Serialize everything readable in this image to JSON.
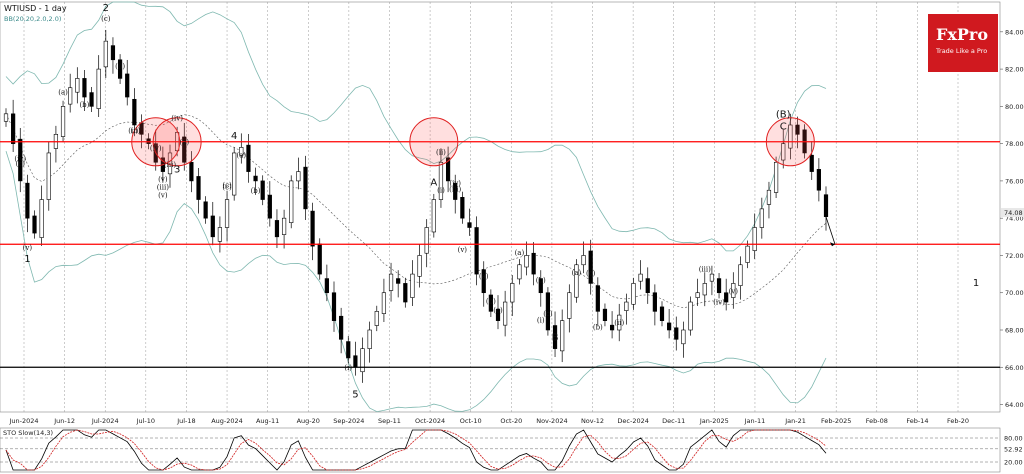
{
  "header": {
    "symbol_title": "WTIUSD - 1 day",
    "bb_label": "BB(20,20,2.0,2.0)"
  },
  "logo": {
    "name": "FxPro",
    "tagline": "Trade Like a Pro",
    "color": "#d0191f"
  },
  "sto": {
    "label": "STO Slow(14,3)",
    "levels": [
      80,
      52.92,
      20
    ],
    "level_labels": [
      "80.00",
      "52.92",
      "20.00"
    ]
  },
  "chart_data": {
    "type": "candlestick",
    "title": "WTIUSD - 1 day",
    "ylim": [
      63.6,
      85.6
    ],
    "y_ticks": [
      "64.00",
      "66.00",
      "68.00",
      "70.00",
      "72.00",
      "74.00",
      "76.00",
      "78.00",
      "80.00",
      "82.00",
      "84.00"
    ],
    "x_ticks": [
      "Jun-2024",
      "Jun-12",
      "Jul-2024",
      "Jul-10",
      "Jul-18",
      "Aug-2024",
      "Aug-11",
      "Aug-20",
      "Sep-2024",
      "Sep-11",
      "Oct-2024",
      "Oct-10",
      "Oct-20",
      "Nov-2024",
      "Nov-12",
      "Dec-2024",
      "Dec-11",
      "Jan-2025",
      "Jan-11",
      "Jan-21",
      "Feb-2025",
      "Feb-08",
      "Feb-14",
      "Feb-20"
    ],
    "last_price": "74.08",
    "horizontal_levels": [
      {
        "price": 78.1,
        "color": "#ff0000"
      },
      {
        "price": 72.6,
        "color": "#ff0000"
      },
      {
        "price": 66.0,
        "color": "#000000"
      }
    ],
    "series": [
      {
        "name": "close",
        "values": [
          79.6,
          78.0,
          76.0,
          74.0,
          73.2,
          75.0,
          77.5,
          78.5,
          80.0,
          81.0,
          81.5,
          80.5,
          80.0,
          82.0,
          83.5,
          82.5,
          81.5,
          80.5,
          79.0,
          78.5,
          78.0,
          77.0,
          76.5,
          77.5,
          78.6,
          77.0,
          76.0,
          75.0,
          74.0,
          73.0,
          73.5,
          75.0,
          77.5,
          77.8,
          76.5,
          76.0,
          75.0,
          74.0,
          73.0,
          74.0,
          76.0,
          76.5,
          74.5,
          72.5,
          71.0,
          70.0,
          68.5,
          67.5,
          66.5,
          66.0,
          67.0,
          68.0,
          69.0,
          70.0,
          71.0,
          70.5,
          69.5,
          71.0,
          72.0,
          73.5,
          75.0,
          77.0,
          76.0,
          75.0,
          74.0,
          73.5,
          71.0,
          70.0,
          69.0,
          68.5,
          69.5,
          70.5,
          71.5,
          72.0,
          71.0,
          70.0,
          68.0,
          67.0,
          68.5,
          70.0,
          71.5,
          72.0,
          70.5,
          69.0,
          68.5,
          68.0,
          68.8,
          69.5,
          70.5,
          71.0,
          70.0,
          69.0,
          68.5,
          68.0,
          67.5,
          68.0,
          69.5,
          70.0,
          70.5,
          71.0,
          70.0,
          69.5,
          70.5,
          71.5,
          72.5,
          73.5,
          74.5,
          75.5,
          77.0,
          78.0,
          79.0,
          78.5,
          77.5,
          76.5,
          75.5,
          74.08
        ]
      }
    ],
    "wave_labels": [
      {
        "text": "2",
        "big": true
      },
      {
        "text": "(c)"
      },
      {
        "text": "(ii)"
      },
      {
        "text": "(iii)"
      },
      {
        "text": "(iv)"
      },
      {
        "text": "(c)"
      },
      {
        "text": "(v)"
      },
      {
        "text": "1",
        "big": true
      },
      {
        "text": "(a)"
      },
      {
        "text": "(b)"
      },
      {
        "text": "(i)"
      },
      {
        "text": "(iii)"
      },
      {
        "text": "(iv)"
      },
      {
        "text": "(iv)"
      },
      {
        "text": "(a)"
      },
      {
        "text": "(v)"
      },
      {
        "text": "(iii)"
      },
      {
        "text": "(c)"
      },
      {
        "text": "4",
        "big": true
      },
      {
        "text": "(c)"
      },
      {
        "text": "(a)"
      },
      {
        "text": "(b)"
      },
      {
        "text": "(v)"
      },
      {
        "text": "3",
        "big": true
      },
      {
        "text": "(i)"
      },
      {
        "text": "5",
        "big": true
      },
      {
        "text": "A",
        "big": true
      },
      {
        "text": "(ii)"
      },
      {
        "text": "(i)"
      },
      {
        "text": "(iv)"
      },
      {
        "text": "(iii)"
      },
      {
        "text": "(v)"
      },
      {
        "text": "(a)"
      },
      {
        "text": "(b)"
      },
      {
        "text": "(c)"
      },
      {
        "text": "(a)"
      },
      {
        "text": "(b)"
      },
      {
        "text": "(c)"
      },
      {
        "text": "B",
        "big": true
      },
      {
        "text": "(i)"
      },
      {
        "text": "(a)"
      },
      {
        "text": "(b)"
      },
      {
        "text": "(c)"
      },
      {
        "text": "(ii)"
      },
      {
        "text": "(iii)"
      },
      {
        "text": "(iv)"
      },
      {
        "text": "(v)"
      },
      {
        "text": "C",
        "big": true
      },
      {
        "text": "(B)",
        "big": true
      },
      {
        "text": "1",
        "big": true
      }
    ]
  }
}
